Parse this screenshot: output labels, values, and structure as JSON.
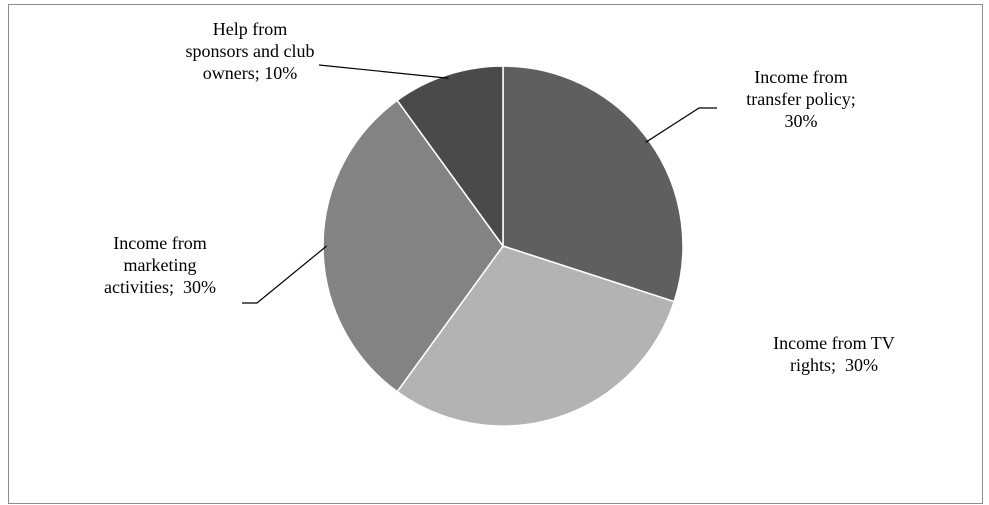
{
  "chart_data": {
    "type": "pie",
    "title": "",
    "unit": "%",
    "slices": [
      {
        "key": "transfer",
        "label": "Income from transfer policy",
        "value": 30,
        "color": "#5f5f5f",
        "label_lines": [
          "Income from",
          "transfer policy;",
          "30%"
        ]
      },
      {
        "key": "tv",
        "label": "Income from TV rights",
        "value": 30,
        "color": "#b3b3b3",
        "label_lines": [
          "Income from TV",
          "rights;  30%"
        ]
      },
      {
        "key": "marketing",
        "label": "Income from marketing activities",
        "value": 30,
        "color": "#838383",
        "label_lines": [
          "Income from",
          "marketing",
          "activities;  30%"
        ]
      },
      {
        "key": "sponsors",
        "label": "Help from sponsors and club owners",
        "value": 10,
        "color": "#4a4a4a",
        "label_lines": [
          "Help from",
          "sponsors and club",
          "owners; 10%"
        ]
      }
    ],
    "slice_border_color": "#ffffff",
    "leader_line_color": "#000000",
    "legend": "none"
  }
}
